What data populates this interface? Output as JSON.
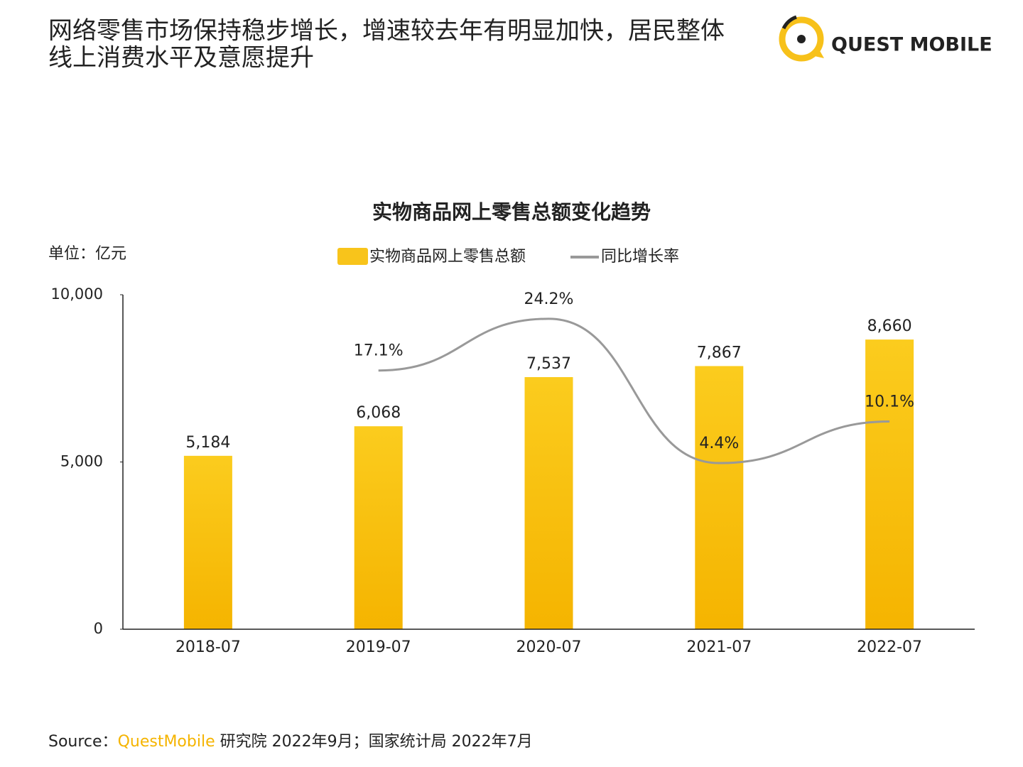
{
  "headline": [
    "网络零售市场保持稳步增长，增速较去年有明显加快，居民整体",
    "线上消费水平及意愿提升"
  ],
  "logo": "QUEST MOBILE",
  "chart_data": {
    "type": "bar-line",
    "title": "实物商品网上零售总额变化趋势",
    "y_unit_label": "单位：亿元",
    "categories": [
      "2018-07",
      "2019-07",
      "2020-07",
      "2021-07",
      "2022-07"
    ],
    "series": [
      {
        "name": "实物商品网上零售总额",
        "color": "#f8c41b",
        "values": [
          5184,
          6068,
          7537,
          7867,
          8660
        ],
        "value_labels": [
          "5,184",
          "6,068",
          "7,537",
          "7,867",
          "8,660"
        ]
      },
      {
        "name": "同比增长率",
        "color": "#999999",
        "axis": "y2",
        "values": [
          null,
          17.1,
          24.2,
          4.4,
          10.1
        ],
        "value_labels": [
          null,
          "17.1%",
          "24.2%",
          "4.4%",
          "10.1%"
        ]
      }
    ],
    "ylim": [
      0,
      10000
    ],
    "yticks": [
      0,
      {
        "value": 5000,
        "label": "5,000"
      },
      {
        "value": 10000,
        "label": "10,000"
      }
    ],
    "y2lim": [
      -18.4,
      27.5
    ],
    "legend": "top"
  },
  "source": {
    "prefix": "Source：",
    "brand": "QuestMobile",
    "rest": " 研究院 2022年9月；国家统计局 2022年7月"
  }
}
